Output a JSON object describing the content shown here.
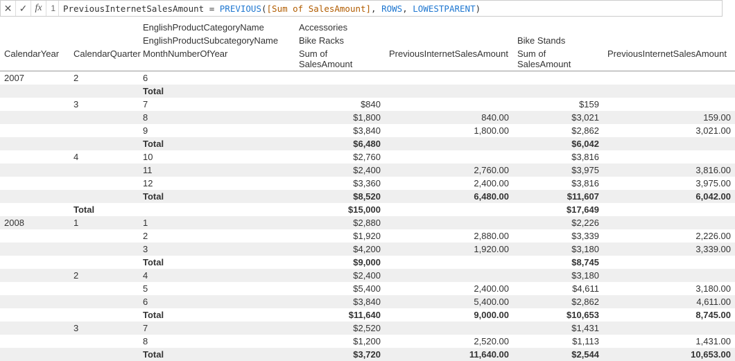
{
  "formula_bar": {
    "line_number": "1",
    "measure_name": "PreviousInternetSalesAmount",
    "equals": " = ",
    "func_name": "PREVIOUS",
    "open_paren": "(",
    "measure_ref": "[Sum of SalesAmount]",
    "sep1": ", ",
    "kw_rows": "ROWS",
    "sep2": ", ",
    "kw_lowest": "LOWESTPARENT",
    "close_paren": ")",
    "cancel_glyph": "✕",
    "accept_glyph": "✓",
    "fx_glyph": "fx"
  },
  "headers": {
    "calendar_year": "CalendarYear",
    "calendar_quarter": "CalendarQuarter",
    "cat_label": "EnglishProductCategoryName",
    "subcat_label": "EnglishProductSubcategoryName",
    "month_label": "MonthNumberOfYear",
    "cat_value": "Accessories",
    "subcat1": "Bike Racks",
    "subcat2": "Bike Stands",
    "sum_label": "Sum of SalesAmount",
    "prev_label": "PreviousInternetSalesAmount"
  },
  "rows": [
    {
      "type": "data",
      "stripe": false,
      "year": "2007",
      "qtr": "2",
      "mon": "6",
      "s1": "",
      "p1": "",
      "s2": "",
      "p2": ""
    },
    {
      "type": "total",
      "stripe": true,
      "year": "",
      "qtr": "",
      "mon": "Total",
      "s1": "",
      "p1": "",
      "s2": "",
      "p2": ""
    },
    {
      "type": "data",
      "stripe": false,
      "year": "",
      "qtr": "3",
      "mon": "7",
      "s1": "$840",
      "p1": "",
      "s2": "$159",
      "p2": ""
    },
    {
      "type": "data",
      "stripe": true,
      "year": "",
      "qtr": "",
      "mon": "8",
      "s1": "$1,800",
      "p1": "840.00",
      "s2": "$3,021",
      "p2": "159.00"
    },
    {
      "type": "data",
      "stripe": false,
      "year": "",
      "qtr": "",
      "mon": "9",
      "s1": "$3,840",
      "p1": "1,800.00",
      "s2": "$2,862",
      "p2": "3,021.00"
    },
    {
      "type": "total",
      "stripe": true,
      "year": "",
      "qtr": "",
      "mon": "Total",
      "s1": "$6,480",
      "p1": "",
      "s2": "$6,042",
      "p2": ""
    },
    {
      "type": "data",
      "stripe": false,
      "year": "",
      "qtr": "4",
      "mon": "10",
      "s1": "$2,760",
      "p1": "",
      "s2": "$3,816",
      "p2": ""
    },
    {
      "type": "data",
      "stripe": true,
      "year": "",
      "qtr": "",
      "mon": "11",
      "s1": "$2,400",
      "p1": "2,760.00",
      "s2": "$3,975",
      "p2": "3,816.00"
    },
    {
      "type": "data",
      "stripe": false,
      "year": "",
      "qtr": "",
      "mon": "12",
      "s1": "$3,360",
      "p1": "2,400.00",
      "s2": "$3,816",
      "p2": "3,975.00"
    },
    {
      "type": "total",
      "stripe": true,
      "year": "",
      "qtr": "",
      "mon": "Total",
      "s1": "$8,520",
      "p1": "6,480.00",
      "s2": "$11,607",
      "p2": "6,042.00"
    },
    {
      "type": "yeartotal",
      "stripe": false,
      "year": "",
      "qtr": "Total",
      "mon": "",
      "s1": "$15,000",
      "p1": "",
      "s2": "$17,649",
      "p2": ""
    },
    {
      "type": "data",
      "stripe": true,
      "year": "2008",
      "qtr": "1",
      "mon": "1",
      "s1": "$2,880",
      "p1": "",
      "s2": "$2,226",
      "p2": ""
    },
    {
      "type": "data",
      "stripe": false,
      "year": "",
      "qtr": "",
      "mon": "2",
      "s1": "$1,920",
      "p1": "2,880.00",
      "s2": "$3,339",
      "p2": "2,226.00"
    },
    {
      "type": "data",
      "stripe": true,
      "year": "",
      "qtr": "",
      "mon": "3",
      "s1": "$4,200",
      "p1": "1,920.00",
      "s2": "$3,180",
      "p2": "3,339.00"
    },
    {
      "type": "total",
      "stripe": false,
      "year": "",
      "qtr": "",
      "mon": "Total",
      "s1": "$9,000",
      "p1": "",
      "s2": "$8,745",
      "p2": ""
    },
    {
      "type": "data",
      "stripe": true,
      "year": "",
      "qtr": "2",
      "mon": "4",
      "s1": "$2,400",
      "p1": "",
      "s2": "$3,180",
      "p2": ""
    },
    {
      "type": "data",
      "stripe": false,
      "year": "",
      "qtr": "",
      "mon": "5",
      "s1": "$5,400",
      "p1": "2,400.00",
      "s2": "$4,611",
      "p2": "3,180.00"
    },
    {
      "type": "data",
      "stripe": true,
      "year": "",
      "qtr": "",
      "mon": "6",
      "s1": "$3,840",
      "p1": "5,400.00",
      "s2": "$2,862",
      "p2": "4,611.00"
    },
    {
      "type": "total",
      "stripe": false,
      "year": "",
      "qtr": "",
      "mon": "Total",
      "s1": "$11,640",
      "p1": "9,000.00",
      "s2": "$10,653",
      "p2": "8,745.00"
    },
    {
      "type": "data",
      "stripe": true,
      "year": "",
      "qtr": "3",
      "mon": "7",
      "s1": "$2,520",
      "p1": "",
      "s2": "$1,431",
      "p2": ""
    },
    {
      "type": "data",
      "stripe": false,
      "year": "",
      "qtr": "",
      "mon": "8",
      "s1": "$1,200",
      "p1": "2,520.00",
      "s2": "$1,113",
      "p2": "1,431.00"
    },
    {
      "type": "total",
      "stripe": true,
      "year": "",
      "qtr": "",
      "mon": "Total",
      "s1": "$3,720",
      "p1": "11,640.00",
      "s2": "$2,544",
      "p2": "10,653.00"
    }
  ]
}
